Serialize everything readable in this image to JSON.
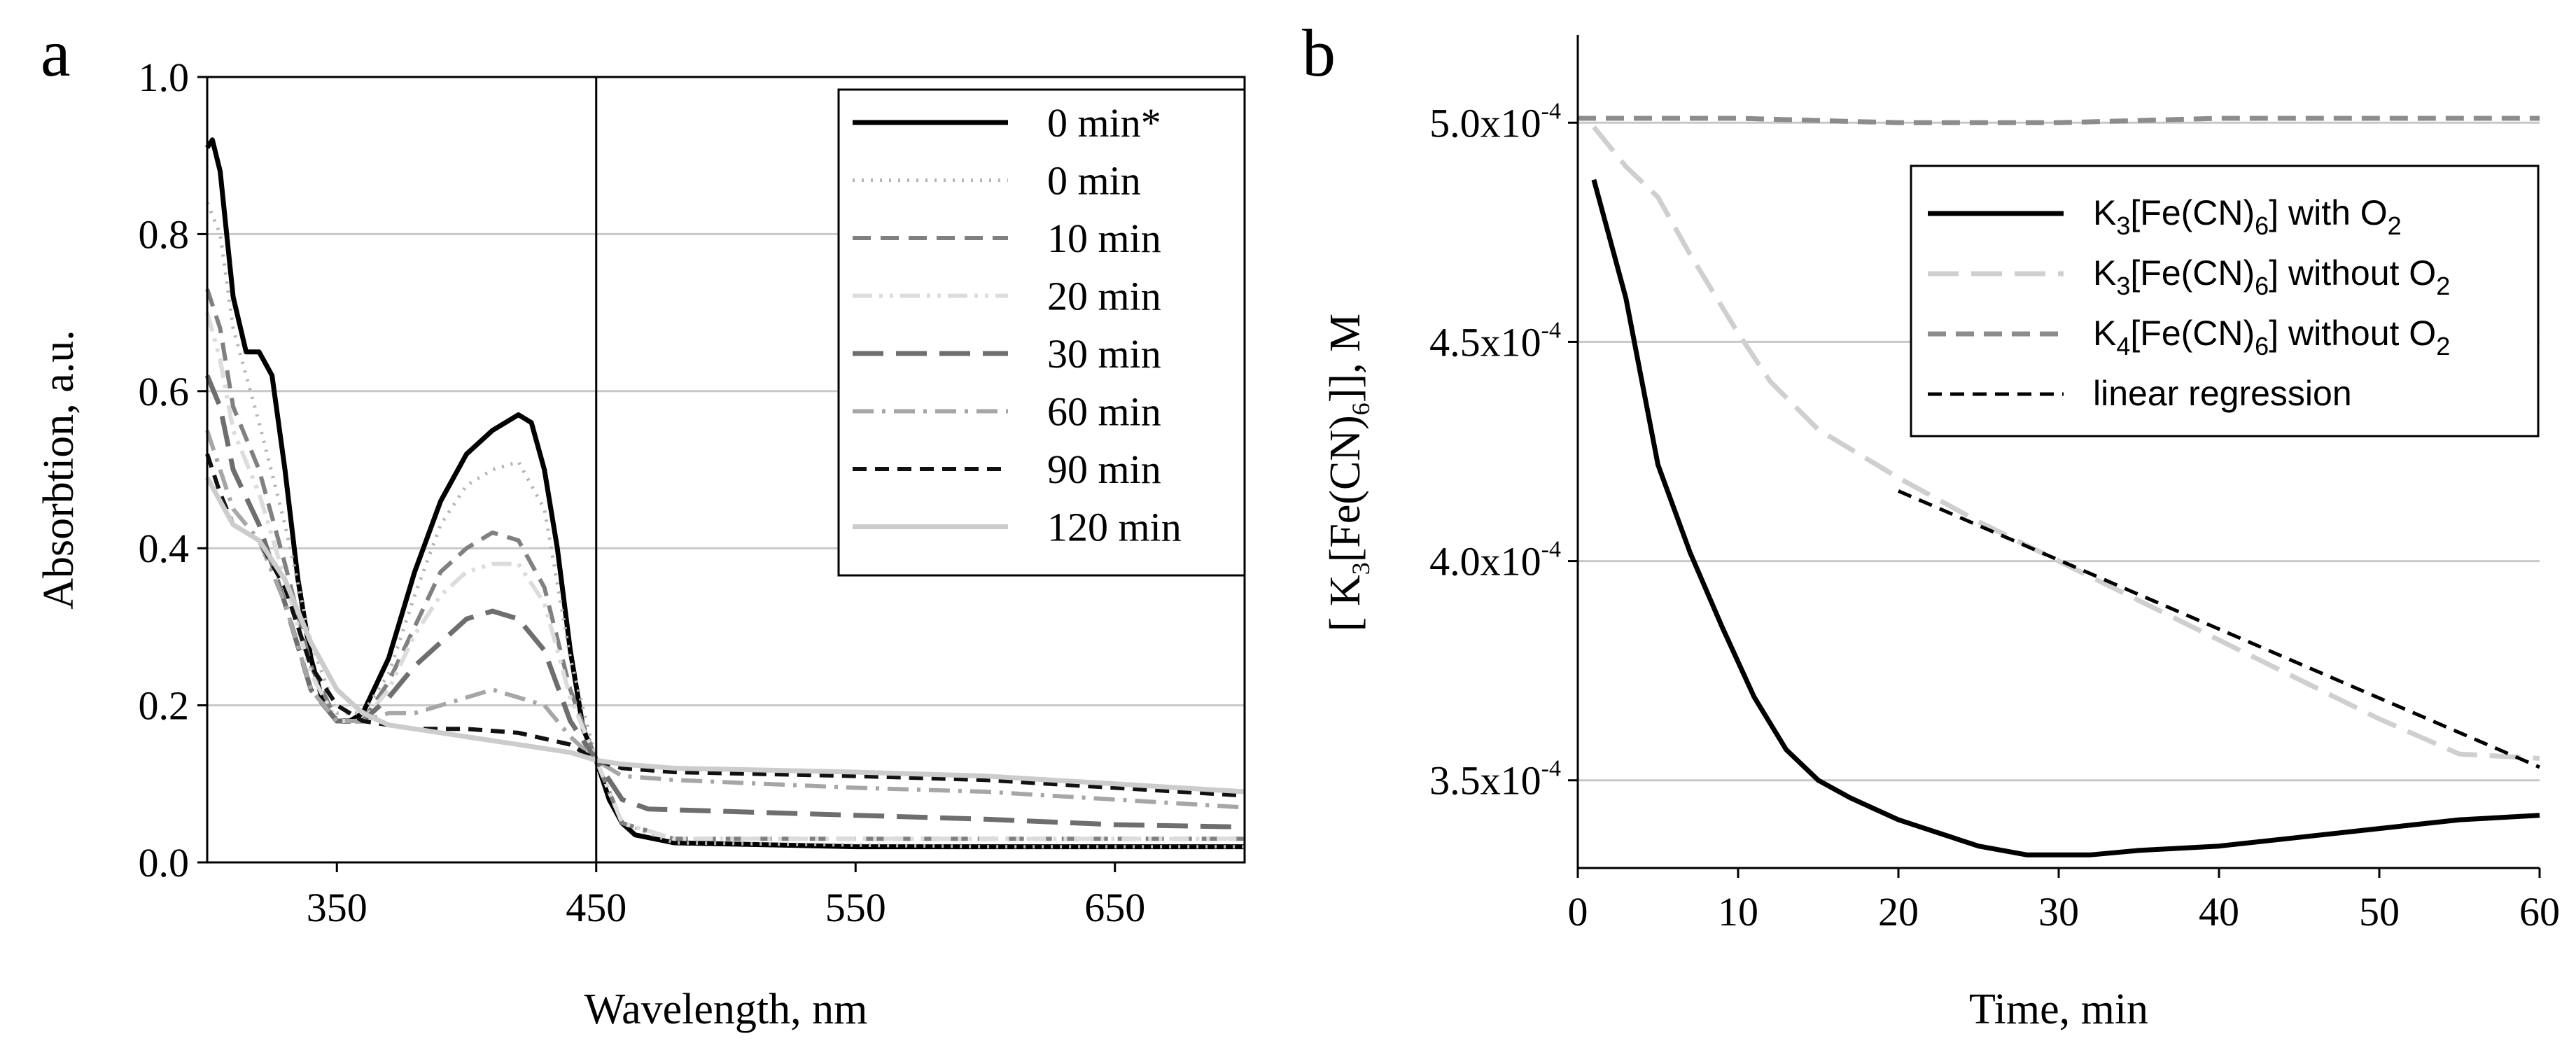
{
  "chart_data": [
    {
      "panel": "a",
      "type": "line",
      "xlabel": "Wavelength, nm",
      "ylabel": "Absorbtion, a.u.",
      "xlim": [
        300,
        700
      ],
      "ylim": [
        0,
        1.0
      ],
      "xticks": [
        "350",
        "450",
        "550",
        "650"
      ],
      "yticks": [
        "0.0",
        "0.2",
        "0.4",
        "0.6",
        "0.8",
        "1.0"
      ],
      "vline_x": 450,
      "grid": "horizontal",
      "legend": "top-right",
      "series": [
        {
          "name": "0 min*",
          "color": "#000000",
          "dash": "solid",
          "width": 7,
          "points": [
            [
              300,
              0.91
            ],
            [
              302,
              0.92
            ],
            [
              305,
              0.88
            ],
            [
              310,
              0.72
            ],
            [
              315,
              0.65
            ],
            [
              320,
              0.65
            ],
            [
              325,
              0.62
            ],
            [
              330,
              0.5
            ],
            [
              335,
              0.36
            ],
            [
              340,
              0.26
            ],
            [
              345,
              0.2
            ],
            [
              350,
              0.18
            ],
            [
              355,
              0.18
            ],
            [
              360,
              0.19
            ],
            [
              370,
              0.26
            ],
            [
              380,
              0.37
            ],
            [
              390,
              0.46
            ],
            [
              400,
              0.52
            ],
            [
              410,
              0.55
            ],
            [
              420,
              0.57
            ],
            [
              425,
              0.56
            ],
            [
              430,
              0.5
            ],
            [
              435,
              0.4
            ],
            [
              440,
              0.27
            ],
            [
              445,
              0.17
            ],
            [
              450,
              0.13
            ],
            [
              455,
              0.08
            ],
            [
              460,
              0.05
            ],
            [
              465,
              0.035
            ],
            [
              480,
              0.025
            ],
            [
              550,
              0.02
            ],
            [
              650,
              0.02
            ],
            [
              700,
              0.02
            ]
          ]
        },
        {
          "name": "0 min",
          "color": "#b4b4b4",
          "dash": "dot",
          "width": 5,
          "points": [
            [
              300,
              0.84
            ],
            [
              305,
              0.8
            ],
            [
              310,
              0.68
            ],
            [
              320,
              0.56
            ],
            [
              330,
              0.43
            ],
            [
              340,
              0.28
            ],
            [
              350,
              0.19
            ],
            [
              360,
              0.19
            ],
            [
              370,
              0.24
            ],
            [
              380,
              0.34
            ],
            [
              390,
              0.43
            ],
            [
              400,
              0.48
            ],
            [
              410,
              0.5
            ],
            [
              420,
              0.51
            ],
            [
              430,
              0.45
            ],
            [
              440,
              0.26
            ],
            [
              450,
              0.13
            ],
            [
              460,
              0.05
            ],
            [
              480,
              0.025
            ],
            [
              600,
              0.02
            ],
            [
              700,
              0.02
            ]
          ]
        },
        {
          "name": "10 min",
          "color": "#808080",
          "dash": "dash",
          "width": 6,
          "points": [
            [
              300,
              0.73
            ],
            [
              305,
              0.68
            ],
            [
              310,
              0.58
            ],
            [
              320,
              0.5
            ],
            [
              330,
              0.38
            ],
            [
              340,
              0.25
            ],
            [
              350,
              0.18
            ],
            [
              360,
              0.18
            ],
            [
              370,
              0.23
            ],
            [
              380,
              0.3
            ],
            [
              390,
              0.37
            ],
            [
              400,
              0.4
            ],
            [
              410,
              0.42
            ],
            [
              420,
              0.41
            ],
            [
              430,
              0.35
            ],
            [
              440,
              0.22
            ],
            [
              450,
              0.13
            ],
            [
              460,
              0.05
            ],
            [
              480,
              0.03
            ],
            [
              600,
              0.03
            ],
            [
              700,
              0.03
            ]
          ]
        },
        {
          "name": "20 min",
          "color": "#dcdcdc",
          "dash": "dashdotdot",
          "width": 6,
          "points": [
            [
              300,
              0.7
            ],
            [
              305,
              0.64
            ],
            [
              310,
              0.55
            ],
            [
              320,
              0.47
            ],
            [
              330,
              0.36
            ],
            [
              340,
              0.24
            ],
            [
              350,
              0.18
            ],
            [
              360,
              0.18
            ],
            [
              370,
              0.22
            ],
            [
              380,
              0.29
            ],
            [
              390,
              0.34
            ],
            [
              400,
              0.37
            ],
            [
              410,
              0.38
            ],
            [
              420,
              0.38
            ],
            [
              430,
              0.33
            ],
            [
              440,
              0.21
            ],
            [
              450,
              0.13
            ],
            [
              460,
              0.05
            ],
            [
              480,
              0.03
            ],
            [
              600,
              0.03
            ],
            [
              700,
              0.03
            ]
          ]
        },
        {
          "name": "30 min",
          "color": "#6e6e6e",
          "dash": "longdash",
          "width": 7,
          "points": [
            [
              300,
              0.62
            ],
            [
              305,
              0.58
            ],
            [
              310,
              0.5
            ],
            [
              320,
              0.43
            ],
            [
              330,
              0.33
            ],
            [
              340,
              0.22
            ],
            [
              350,
              0.18
            ],
            [
              360,
              0.18
            ],
            [
              370,
              0.21
            ],
            [
              380,
              0.25
            ],
            [
              390,
              0.28
            ],
            [
              400,
              0.31
            ],
            [
              410,
              0.32
            ],
            [
              420,
              0.31
            ],
            [
              430,
              0.27
            ],
            [
              440,
              0.18
            ],
            [
              450,
              0.13
            ],
            [
              460,
              0.08
            ],
            [
              470,
              0.068
            ],
            [
              500,
              0.065
            ],
            [
              550,
              0.06
            ],
            [
              600,
              0.055
            ],
            [
              650,
              0.048
            ],
            [
              700,
              0.045
            ]
          ]
        },
        {
          "name": "60 min",
          "color": "#a6a6a6",
          "dash": "dashdot",
          "width": 6,
          "points": [
            [
              300,
              0.55
            ],
            [
              305,
              0.5
            ],
            [
              310,
              0.45
            ],
            [
              320,
              0.41
            ],
            [
              330,
              0.33
            ],
            [
              340,
              0.22
            ],
            [
              350,
              0.18
            ],
            [
              360,
              0.18
            ],
            [
              370,
              0.19
            ],
            [
              380,
              0.19
            ],
            [
              390,
              0.2
            ],
            [
              400,
              0.21
            ],
            [
              410,
              0.22
            ],
            [
              420,
              0.21
            ],
            [
              430,
              0.2
            ],
            [
              440,
              0.16
            ],
            [
              450,
              0.13
            ],
            [
              460,
              0.11
            ],
            [
              480,
              0.105
            ],
            [
              550,
              0.095
            ],
            [
              600,
              0.09
            ],
            [
              650,
              0.08
            ],
            [
              700,
              0.07
            ]
          ]
        },
        {
          "name": "90 min",
          "color": "#111111",
          "dash": "shortdash",
          "width": 6,
          "points": [
            [
              300,
              0.52
            ],
            [
              305,
              0.47
            ],
            [
              310,
              0.43
            ],
            [
              320,
              0.41
            ],
            [
              330,
              0.35
            ],
            [
              340,
              0.25
            ],
            [
              350,
              0.2
            ],
            [
              360,
              0.18
            ],
            [
              370,
              0.175
            ],
            [
              380,
              0.17
            ],
            [
              400,
              0.17
            ],
            [
              420,
              0.165
            ],
            [
              440,
              0.15
            ],
            [
              450,
              0.13
            ],
            [
              460,
              0.12
            ],
            [
              480,
              0.115
            ],
            [
              550,
              0.11
            ],
            [
              600,
              0.105
            ],
            [
              650,
              0.095
            ],
            [
              700,
              0.085
            ]
          ]
        },
        {
          "name": "120 min",
          "color": "#cccccc",
          "dash": "solid",
          "width": 7,
          "points": [
            [
              300,
              0.49
            ],
            [
              305,
              0.46
            ],
            [
              310,
              0.43
            ],
            [
              320,
              0.41
            ],
            [
              330,
              0.36
            ],
            [
              340,
              0.28
            ],
            [
              350,
              0.22
            ],
            [
              360,
              0.19
            ],
            [
              370,
              0.175
            ],
            [
              380,
              0.17
            ],
            [
              400,
              0.16
            ],
            [
              420,
              0.15
            ],
            [
              440,
              0.14
            ],
            [
              450,
              0.13
            ],
            [
              460,
              0.125
            ],
            [
              480,
              0.12
            ],
            [
              550,
              0.115
            ],
            [
              600,
              0.11
            ],
            [
              650,
              0.1
            ],
            [
              700,
              0.09
            ]
          ]
        }
      ]
    },
    {
      "panel": "b",
      "type": "line",
      "xlabel": "Time, min",
      "ylabel": "[ K3[Fe(CN)6]], M",
      "xlim": [
        0,
        60
      ],
      "ylim": [
        0.00033,
        0.00052
      ],
      "xticks": [
        "0",
        "10",
        "20",
        "30",
        "40",
        "50",
        "60"
      ],
      "yticks": [
        {
          "value": 0.00035,
          "mantissa": "3.5x10",
          "exp": "-4"
        },
        {
          "value": 0.0004,
          "mantissa": "4.0x10",
          "exp": "-4"
        },
        {
          "value": 0.00045,
          "mantissa": "4.5x10",
          "exp": "-4"
        },
        {
          "value": 0.0005,
          "mantissa": "5.0x10",
          "exp": "-4"
        }
      ],
      "grid": "horizontal",
      "legend": "top-right",
      "series": [
        {
          "name": "K3[Fe(CN)6] with O2",
          "color": "#000000",
          "dash": "solid",
          "width": 7,
          "points": [
            [
              1,
              0.000487
            ],
            [
              3,
              0.00046
            ],
            [
              5,
              0.000422
            ],
            [
              7,
              0.000402
            ],
            [
              9,
              0.000385
            ],
            [
              11,
              0.000369
            ],
            [
              13,
              0.000357
            ],
            [
              15,
              0.00035
            ],
            [
              17,
              0.000346
            ],
            [
              20,
              0.000341
            ],
            [
              25,
              0.000335
            ],
            [
              28,
              0.000333
            ],
            [
              30,
              0.000333
            ],
            [
              32,
              0.000333
            ],
            [
              35,
              0.000334
            ],
            [
              40,
              0.000335
            ],
            [
              45,
              0.000337
            ],
            [
              50,
              0.000339
            ],
            [
              55,
              0.000341
            ],
            [
              60,
              0.000342
            ]
          ]
        },
        {
          "name": "K3[Fe(CN)6] without O2",
          "color": "#cfcfcf",
          "dash": "longdash",
          "width": 7,
          "points": [
            [
              1,
              0.000499
            ],
            [
              3,
              0.00049
            ],
            [
              5,
              0.000483
            ],
            [
              7,
              0.00047
            ],
            [
              10,
              0.000452
            ],
            [
              12,
              0.000441
            ],
            [
              15,
              0.00043
            ],
            [
              20,
              0.000419
            ],
            [
              25,
              0.000409
            ],
            [
              30,
              0.0004
            ],
            [
              35,
              0.000391
            ],
            [
              40,
              0.000382
            ],
            [
              45,
              0.000373
            ],
            [
              50,
              0.000364
            ],
            [
              55,
              0.000356
            ],
            [
              60,
              0.000355
            ]
          ]
        },
        {
          "name": "K4[Fe(CN)6] without O2",
          "color": "#8c8c8c",
          "dash": "dash",
          "width": 7,
          "points": [
            [
              0,
              0.000501
            ],
            [
              10,
              0.000501
            ],
            [
              20,
              0.0005
            ],
            [
              30,
              0.0005
            ],
            [
              40,
              0.000501
            ],
            [
              50,
              0.000501
            ],
            [
              60,
              0.000501
            ]
          ]
        },
        {
          "name": "linear regression",
          "color": "#000000",
          "dash": "shortdash",
          "width": 5,
          "points": [
            [
              20,
              0.000416
            ],
            [
              60,
              0.000353
            ]
          ]
        }
      ],
      "legend_labels": [
        {
          "prefix": "K",
          "s1": "3",
          "mid": "[Fe(CN)",
          "s2": "6",
          "post": "] with O",
          "s3": "2"
        },
        {
          "prefix": "K",
          "s1": "3",
          "mid": "[Fe(CN)",
          "s2": "6",
          "post": "] without O",
          "s3": "2"
        },
        {
          "prefix": "K",
          "s1": "4",
          "mid": "[Fe(CN)",
          "s2": "6",
          "post": "] without O",
          "s3": "2"
        },
        {
          "prefix": "linear regression",
          "s1": "",
          "mid": "",
          "s2": "",
          "post": "",
          "s3": ""
        }
      ]
    }
  ],
  "panel_labels": {
    "a": "a",
    "b": "b"
  },
  "ylabel_b_parts": {
    "open": "[ K",
    "s1": "3",
    "mid": "[Fe(CN)",
    "s2": "6",
    "close": "]], M"
  }
}
